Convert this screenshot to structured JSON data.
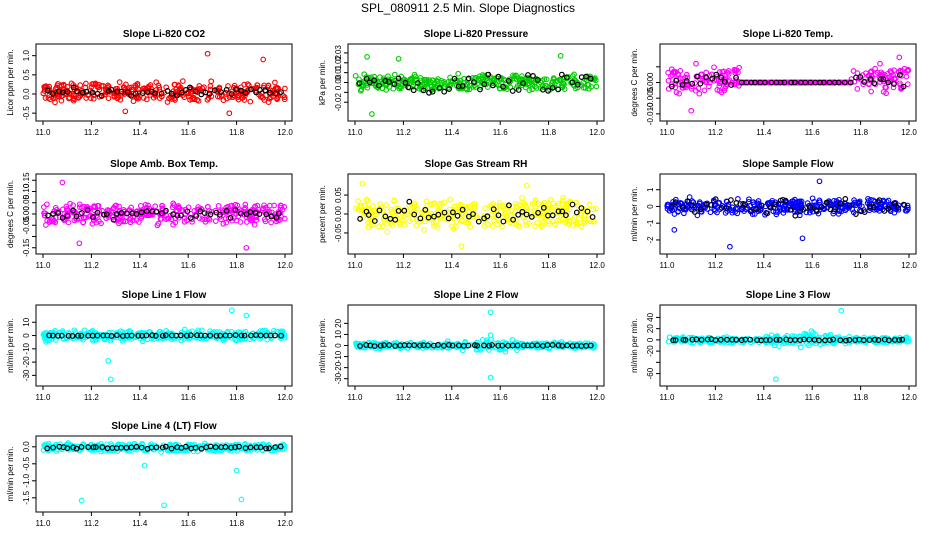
{
  "figure": {
    "title": "SPL_080911  2.5 Min. Slope Diagnostics"
  },
  "chart_data": [
    {
      "type": "scatter",
      "title": "Slope Li-820 CO2",
      "ylabel": "Licor ppm per min.",
      "xlim": [
        11.0,
        12.0
      ],
      "xticks": [
        "11.0",
        "11.2",
        "11.4",
        "11.6",
        "11.8",
        "12.0"
      ],
      "ylim": [
        -0.6,
        1.2
      ],
      "yticks": [
        -0.5,
        0.0,
        0.5,
        1.0
      ],
      "ytick_labels": [
        "-0.5",
        "0.0",
        "0.5",
        "1.0"
      ],
      "color": "#ff0000",
      "series_profile": {
        "band_lo": -0.15,
        "band_hi": 0.25,
        "spread": 0.25,
        "black_spread": 0.18,
        "outliers": [
          [
            11.68,
            1.05
          ],
          [
            11.91,
            0.9
          ],
          [
            11.77,
            -0.5
          ],
          [
            11.34,
            -0.45
          ]
        ]
      }
    },
    {
      "type": "scatter",
      "title": "Slope Li-820 Pressure",
      "ylabel": "kPa per min.",
      "xlim": [
        11.0,
        12.0
      ],
      "xticks": [
        "11.0",
        "11.2",
        "11.4",
        "11.6",
        "11.8",
        "12.0"
      ],
      "ylim": [
        -0.035,
        0.035
      ],
      "yticks": [
        -0.02,
        -0.01,
        0.0,
        0.01,
        0.02,
        0.03
      ],
      "ytick_labels": [
        "-0.02",
        "0.00",
        "0.01",
        "0.02",
        "0.03"
      ],
      "color": "#00cc00",
      "series_profile": {
        "band_lo": -0.006,
        "band_hi": 0.006,
        "spread": 0.01,
        "black_spread": 0.015,
        "outliers": [
          [
            11.18,
            0.024
          ],
          [
            11.05,
            0.026
          ],
          [
            11.85,
            0.027
          ],
          [
            11.07,
            -0.032
          ]
        ]
      }
    },
    {
      "type": "scatter",
      "title": "Slope Li-820 Temp.",
      "ylabel": "degrees C per min.",
      "xlim": [
        11.0,
        12.0
      ],
      "xticks": [
        "11.0",
        "11.2",
        "11.4",
        "11.6",
        "11.8",
        "12.0"
      ],
      "ylim": [
        -0.011,
        0.011
      ],
      "yticks": [
        -0.01,
        -0.005,
        0.0,
        0.005
      ],
      "ytick_labels": [
        "-0.010",
        "-0.005",
        "0.000"
      ],
      "color": "#ff00ff",
      "series_profile": {
        "band_lo": -0.003,
        "band_hi": 0.004,
        "spread": 0.004,
        "black_spread": 0.004,
        "flat_range": [
          11.3,
          11.76
        ],
        "outliers": [
          [
            11.1,
            -0.009
          ],
          [
            11.12,
            0.006
          ],
          [
            11.88,
            0.006
          ],
          [
            11.96,
            0.008
          ]
        ]
      }
    },
    {
      "type": "scatter",
      "title": "Slope Amb. Box Temp.",
      "ylabel": "degrees C per min.",
      "xlim": [
        11.0,
        12.0
      ],
      "xticks": [
        "11.0",
        "11.2",
        "11.4",
        "11.6",
        "11.8",
        "12.0"
      ],
      "ylim": [
        -0.16,
        0.16
      ],
      "yticks": [
        -0.15,
        -0.1,
        -0.05,
        0.0,
        0.05,
        0.1,
        0.15
      ],
      "ytick_labels": [
        "-0.15",
        "-0.05",
        "0.00",
        "0.05",
        "0.10",
        "0.15"
      ],
      "color": "#ff00ff",
      "series_profile": {
        "band_lo": -0.04,
        "band_hi": 0.04,
        "spread": 0.05,
        "black_spread": 0.04,
        "outliers": [
          [
            11.08,
            0.14
          ],
          [
            11.84,
            -0.15
          ],
          [
            11.15,
            -0.13
          ]
        ]
      }
    },
    {
      "type": "scatter",
      "title": "Slope Gas Stream RH",
      "ylabel": "percent per min.",
      "xlim": [
        11.0,
        12.0
      ],
      "xticks": [
        "11.0",
        "11.2",
        "11.4",
        "11.6",
        "11.8",
        "12.0"
      ],
      "ylim": [
        -0.095,
        0.095
      ],
      "yticks": [
        -0.05,
        0.0,
        0.05
      ],
      "ytick_labels": [
        "-0.05",
        "0.00",
        "0.05"
      ],
      "color": "#ffff00",
      "series_profile": {
        "band_lo": -0.03,
        "band_hi": 0.03,
        "spread": 0.045,
        "black_spread": 0.045,
        "outliers": [
          [
            11.03,
            0.08
          ],
          [
            11.44,
            -0.085
          ],
          [
            11.71,
            0.075
          ]
        ]
      }
    },
    {
      "type": "scatter",
      "title": "Slope Sample Flow",
      "ylabel": "ml/min per min.",
      "xlim": [
        11.0,
        12.0
      ],
      "xticks": [
        "11.0",
        "11.2",
        "11.4",
        "11.6",
        "11.8",
        "12.0"
      ],
      "ylim": [
        -2.6,
        1.7
      ],
      "yticks": [
        -2,
        -1,
        0,
        1
      ],
      "ytick_labels": [
        "-2",
        "-1",
        "0",
        "1"
      ],
      "color": "#0000ff",
      "series_profile": {
        "band_lo": -0.3,
        "band_hi": 0.3,
        "spread": 0.7,
        "black_spread": 0.8,
        "outliers": [
          [
            11.03,
            -1.4
          ],
          [
            11.26,
            -2.4
          ],
          [
            11.63,
            1.5
          ],
          [
            11.56,
            -1.9
          ]
        ]
      }
    },
    {
      "type": "scatter",
      "title": "Slope Line 1 Flow",
      "ylabel": "ml/min per min.",
      "xlim": [
        11.0,
        12.0
      ],
      "xticks": [
        "11.0",
        "11.2",
        "11.4",
        "11.6",
        "11.8",
        "12.0"
      ],
      "ylim": [
        -35,
        20
      ],
      "yticks": [
        -30,
        -20,
        -10,
        0,
        10
      ],
      "ytick_labels": [
        "-30",
        "-20",
        "-10",
        "0",
        "10"
      ],
      "color": "#00ffff",
      "series_profile": {
        "band_lo": -3,
        "band_hi": 3,
        "spread": 5,
        "black_spread": 0.5,
        "outliers": [
          [
            11.28,
            -33
          ],
          [
            11.78,
            19
          ],
          [
            11.27,
            -19
          ],
          [
            11.84,
            15
          ]
        ]
      }
    },
    {
      "type": "scatter",
      "title": "Slope Line 2 Flow",
      "ylabel": "ml/min per min.",
      "xlim": [
        11.0,
        12.0
      ],
      "xticks": [
        "11.0",
        "11.2",
        "11.4",
        "11.6",
        "11.8",
        "12.0"
      ],
      "ylim": [
        -33,
        33
      ],
      "yticks": [
        -30,
        -20,
        -10,
        0,
        10,
        20
      ],
      "ytick_labels": [
        "-30",
        "-20",
        "-10",
        "0",
        "10",
        "20"
      ],
      "color": "#00ffff",
      "series_profile": {
        "band_lo": -2,
        "band_hi": 2,
        "spread": 4,
        "black_spread": 1,
        "center_burst": [
          11.4,
          11.72,
          28
        ],
        "outliers": [
          [
            11.56,
            30
          ],
          [
            11.56,
            -29
          ]
        ]
      }
    },
    {
      "type": "scatter",
      "title": "Slope Line 3 Flow",
      "ylabel": "ml/min per min.",
      "xlim": [
        11.0,
        12.0
      ],
      "xticks": [
        "11.0",
        "11.2",
        "11.4",
        "11.6",
        "11.8",
        "12.0"
      ],
      "ylim": [
        -75,
        55
      ],
      "yticks": [
        -60,
        -40,
        -20,
        0,
        20,
        40
      ],
      "ytick_labels": [
        "-60",
        "-20",
        "0",
        "20",
        "40"
      ],
      "color": "#00ffff",
      "series_profile": {
        "band_lo": -4,
        "band_hi": 4,
        "spread": 6,
        "black_spread": 2,
        "center_burst": [
          11.35,
          11.78,
          50
        ],
        "outliers": [
          [
            11.45,
            -70
          ],
          [
            11.72,
            52
          ]
        ]
      }
    },
    {
      "type": "scatter",
      "title": "Slope Line 4 (LT) Flow",
      "ylabel": "ml/min per min.",
      "xlim": [
        11.0,
        12.0
      ],
      "xticks": [
        "11.0",
        "11.2",
        "11.4",
        "11.6",
        "11.8",
        "12.0"
      ],
      "ylim": [
        -1.8,
        0.2
      ],
      "yticks": [
        -1.5,
        -1.0,
        -0.5,
        0.0
      ],
      "ytick_labels": [
        "-1.5",
        "-1.0",
        "-0.5",
        "0.0"
      ],
      "color": "#00ffff",
      "series_profile": {
        "band_lo": -0.12,
        "band_hi": 0.08,
        "spread": 0.1,
        "black_spread": 0.06,
        "outliers": [
          [
            11.16,
            -1.58
          ],
          [
            11.82,
            -1.55
          ],
          [
            11.5,
            -1.72
          ],
          [
            11.42,
            -0.55
          ],
          [
            11.8,
            -0.7
          ]
        ]
      }
    }
  ]
}
